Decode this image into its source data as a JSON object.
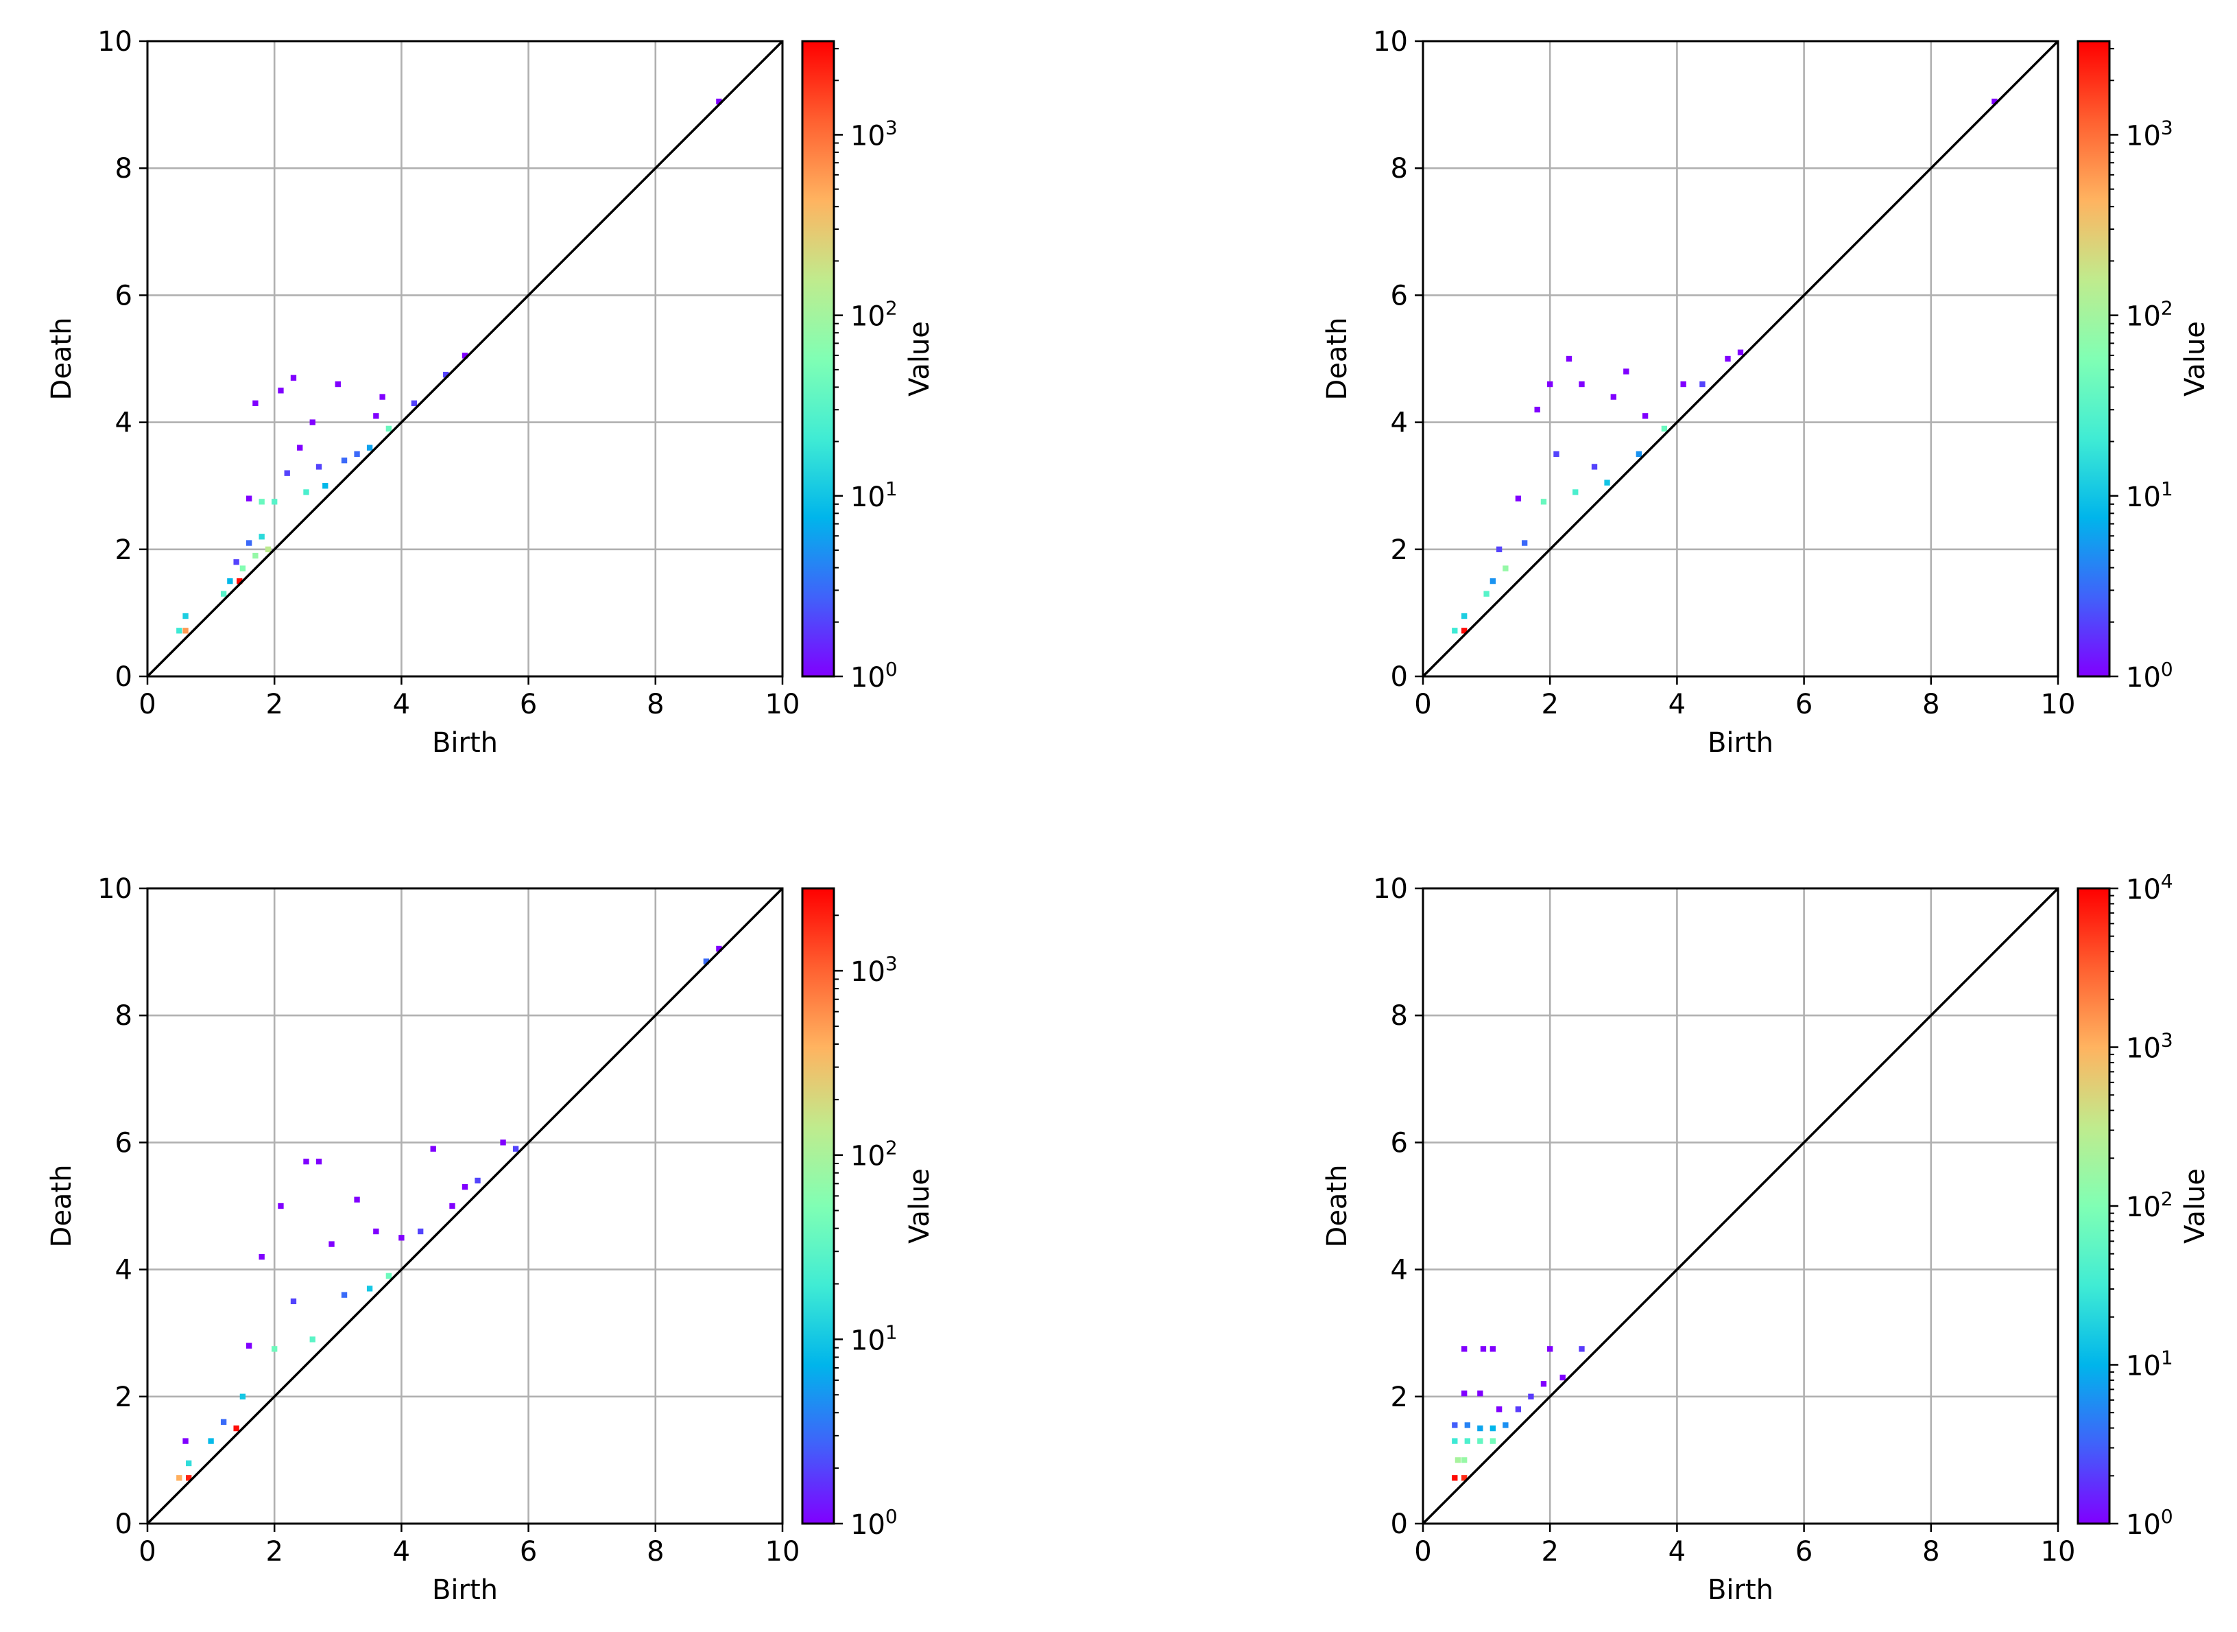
{
  "chart_data": [
    {
      "type": "heatmap",
      "xlabel": "Birth",
      "ylabel": "Death",
      "xlim": [
        0,
        10
      ],
      "ylim": [
        0,
        10
      ],
      "xticks": [
        "0",
        "2",
        "4",
        "6",
        "8",
        "10"
      ],
      "yticks": [
        "0",
        "2",
        "4",
        "6",
        "8",
        "10"
      ],
      "grid": true,
      "diagonal": true,
      "colorbar": {
        "label": "Value",
        "scale": "log",
        "range": [
          1,
          3300
        ],
        "colormap": "rainbow",
        "ticks": [
          {
            "base": "10",
            "exp": "0",
            "value": 1
          },
          {
            "base": "10",
            "exp": "1",
            "value": 10
          },
          {
            "base": "10",
            "exp": "2",
            "value": 100
          },
          {
            "base": "10",
            "exp": "3",
            "value": 1000
          }
        ]
      },
      "cells": [
        {
          "birth": 0.5,
          "death": 0.72,
          "value": 20
        },
        {
          "birth": 0.6,
          "death": 0.72,
          "value": 600
        },
        {
          "birth": 0.6,
          "death": 0.95,
          "value": 12
        },
        {
          "birth": 1.2,
          "death": 1.3,
          "value": 30
        },
        {
          "birth": 1.3,
          "death": 1.5,
          "value": 8
        },
        {
          "birth": 1.45,
          "death": 1.5,
          "value": 3000
        },
        {
          "birth": 1.4,
          "death": 1.8,
          "value": 2
        },
        {
          "birth": 1.5,
          "death": 1.7,
          "value": 60
        },
        {
          "birth": 1.6,
          "death": 2.1,
          "value": 3
        },
        {
          "birth": 1.7,
          "death": 1.9,
          "value": 80
        },
        {
          "birth": 1.8,
          "death": 2.2,
          "value": 15
        },
        {
          "birth": 1.9,
          "death": 2.0,
          "value": 150
        },
        {
          "birth": 1.6,
          "death": 2.8,
          "value": 1
        },
        {
          "birth": 1.7,
          "death": 4.3,
          "value": 1
        },
        {
          "birth": 1.8,
          "death": 2.75,
          "value": 40
        },
        {
          "birth": 2.0,
          "death": 2.75,
          "value": 30
        },
        {
          "birth": 2.1,
          "death": 4.5,
          "value": 1
        },
        {
          "birth": 2.2,
          "death": 3.2,
          "value": 2
        },
        {
          "birth": 2.3,
          "death": 4.7,
          "value": 1
        },
        {
          "birth": 2.4,
          "death": 3.6,
          "value": 1
        },
        {
          "birth": 2.5,
          "death": 2.9,
          "value": 25
        },
        {
          "birth": 2.6,
          "death": 4.0,
          "value": 1
        },
        {
          "birth": 2.7,
          "death": 3.3,
          "value": 2
        },
        {
          "birth": 2.8,
          "death": 3.0,
          "value": 8
        },
        {
          "birth": 3.0,
          "death": 4.6,
          "value": 1
        },
        {
          "birth": 3.1,
          "death": 3.4,
          "value": 3
        },
        {
          "birth": 3.3,
          "death": 3.5,
          "value": 3
        },
        {
          "birth": 3.5,
          "death": 3.6,
          "value": 6
        },
        {
          "birth": 3.6,
          "death": 4.1,
          "value": 1
        },
        {
          "birth": 3.7,
          "death": 4.4,
          "value": 1
        },
        {
          "birth": 3.8,
          "death": 3.9,
          "value": 40
        },
        {
          "birth": 4.2,
          "death": 4.3,
          "value": 2
        },
        {
          "birth": 4.7,
          "death": 4.75,
          "value": 2
        },
        {
          "birth": 5.0,
          "death": 5.05,
          "value": 1
        },
        {
          "birth": 9.0,
          "death": 9.05,
          "value": 1
        }
      ]
    },
    {
      "type": "heatmap",
      "xlabel": "Birth",
      "ylabel": "Death",
      "xlim": [
        0,
        10
      ],
      "ylim": [
        0,
        10
      ],
      "xticks": [
        "0",
        "2",
        "4",
        "6",
        "8",
        "10"
      ],
      "yticks": [
        "0",
        "2",
        "4",
        "6",
        "8",
        "10"
      ],
      "grid": true,
      "diagonal": true,
      "colorbar": {
        "label": "Value",
        "scale": "log",
        "range": [
          1,
          3300
        ],
        "colormap": "rainbow",
        "ticks": [
          {
            "base": "10",
            "exp": "0",
            "value": 1
          },
          {
            "base": "10",
            "exp": "1",
            "value": 10
          },
          {
            "base": "10",
            "exp": "2",
            "value": 100
          },
          {
            "base": "10",
            "exp": "3",
            "value": 1000
          }
        ]
      },
      "cells": [
        {
          "birth": 0.5,
          "death": 0.72,
          "value": 20
        },
        {
          "birth": 0.65,
          "death": 0.72,
          "value": 3000
        },
        {
          "birth": 0.65,
          "death": 0.95,
          "value": 12
        },
        {
          "birth": 1.0,
          "death": 1.3,
          "value": 30
        },
        {
          "birth": 1.1,
          "death": 1.5,
          "value": 5
        },
        {
          "birth": 1.2,
          "death": 2.0,
          "value": 2
        },
        {
          "birth": 1.3,
          "death": 1.7,
          "value": 80
        },
        {
          "birth": 1.5,
          "death": 2.8,
          "value": 1
        },
        {
          "birth": 1.6,
          "death": 2.1,
          "value": 3
        },
        {
          "birth": 1.8,
          "death": 4.2,
          "value": 1
        },
        {
          "birth": 1.9,
          "death": 2.75,
          "value": 40
        },
        {
          "birth": 2.0,
          "death": 4.6,
          "value": 1
        },
        {
          "birth": 2.1,
          "death": 3.5,
          "value": 2
        },
        {
          "birth": 2.3,
          "death": 5.0,
          "value": 1
        },
        {
          "birth": 2.4,
          "death": 2.9,
          "value": 25
        },
        {
          "birth": 2.5,
          "death": 4.6,
          "value": 1
        },
        {
          "birth": 2.7,
          "death": 3.3,
          "value": 2
        },
        {
          "birth": 2.9,
          "death": 3.05,
          "value": 10
        },
        {
          "birth": 3.0,
          "death": 4.4,
          "value": 1
        },
        {
          "birth": 3.2,
          "death": 4.8,
          "value": 1
        },
        {
          "birth": 3.4,
          "death": 3.5,
          "value": 5
        },
        {
          "birth": 3.5,
          "death": 4.1,
          "value": 1
        },
        {
          "birth": 3.8,
          "death": 3.9,
          "value": 40
        },
        {
          "birth": 4.1,
          "death": 4.6,
          "value": 1
        },
        {
          "birth": 4.4,
          "death": 4.6,
          "value": 2
        },
        {
          "birth": 4.8,
          "death": 5.0,
          "value": 1
        },
        {
          "birth": 5.0,
          "death": 5.1,
          "value": 1
        },
        {
          "birth": 9.0,
          "death": 9.05,
          "value": 1
        }
      ]
    },
    {
      "type": "heatmap",
      "xlabel": "Birth",
      "ylabel": "Death",
      "xlim": [
        0,
        10
      ],
      "ylim": [
        0,
        10
      ],
      "xticks": [
        "0",
        "2",
        "4",
        "6",
        "8",
        "10"
      ],
      "yticks": [
        "0",
        "2",
        "4",
        "6",
        "8",
        "10"
      ],
      "grid": true,
      "diagonal": true,
      "colorbar": {
        "label": "Value",
        "scale": "log",
        "range": [
          1,
          2800
        ],
        "colormap": "rainbow",
        "ticks": [
          {
            "base": "10",
            "exp": "0",
            "value": 1
          },
          {
            "base": "10",
            "exp": "1",
            "value": 10
          },
          {
            "base": "10",
            "exp": "2",
            "value": 100
          },
          {
            "base": "10",
            "exp": "3",
            "value": 1000
          }
        ]
      },
      "cells": [
        {
          "birth": 0.5,
          "death": 0.72,
          "value": 400
        },
        {
          "birth": 0.65,
          "death": 0.72,
          "value": 2000
        },
        {
          "birth": 0.65,
          "death": 0.95,
          "value": 15
        },
        {
          "birth": 0.6,
          "death": 1.3,
          "value": 1
        },
        {
          "birth": 1.0,
          "death": 1.3,
          "value": 8
        },
        {
          "birth": 1.2,
          "death": 1.6,
          "value": 3
        },
        {
          "birth": 1.4,
          "death": 1.5,
          "value": 2500
        },
        {
          "birth": 1.5,
          "death": 2.0,
          "value": 10
        },
        {
          "birth": 1.6,
          "death": 2.8,
          "value": 1
        },
        {
          "birth": 1.8,
          "death": 4.2,
          "value": 1
        },
        {
          "birth": 2.0,
          "death": 2.75,
          "value": 40
        },
        {
          "birth": 2.1,
          "death": 5.0,
          "value": 1
        },
        {
          "birth": 2.3,
          "death": 3.5,
          "value": 2
        },
        {
          "birth": 2.5,
          "death": 5.7,
          "value": 1
        },
        {
          "birth": 2.7,
          "death": 5.7,
          "value": 1
        },
        {
          "birth": 2.6,
          "death": 2.9,
          "value": 30
        },
        {
          "birth": 2.9,
          "death": 4.4,
          "value": 1
        },
        {
          "birth": 3.1,
          "death": 3.6,
          "value": 3
        },
        {
          "birth": 3.3,
          "death": 5.1,
          "value": 1
        },
        {
          "birth": 3.5,
          "death": 3.7,
          "value": 10
        },
        {
          "birth": 3.6,
          "death": 4.6,
          "value": 1
        },
        {
          "birth": 3.8,
          "death": 3.9,
          "value": 40
        },
        {
          "birth": 4.0,
          "death": 4.5,
          "value": 1
        },
        {
          "birth": 4.3,
          "death": 4.6,
          "value": 2
        },
        {
          "birth": 4.5,
          "death": 5.9,
          "value": 1
        },
        {
          "birth": 4.8,
          "death": 5.0,
          "value": 1
        },
        {
          "birth": 5.0,
          "death": 5.3,
          "value": 1
        },
        {
          "birth": 5.2,
          "death": 5.4,
          "value": 2
        },
        {
          "birth": 5.6,
          "death": 6.0,
          "value": 1
        },
        {
          "birth": 5.8,
          "death": 5.9,
          "value": 2
        },
        {
          "birth": 8.8,
          "death": 8.85,
          "value": 3
        },
        {
          "birth": 9.0,
          "death": 9.05,
          "value": 1
        }
      ]
    },
    {
      "type": "heatmap",
      "xlabel": "Birth",
      "ylabel": "Death",
      "xlim": [
        0,
        10
      ],
      "ylim": [
        0,
        10
      ],
      "xticks": [
        "0",
        "2",
        "4",
        "6",
        "8",
        "10"
      ],
      "yticks": [
        "0",
        "2",
        "4",
        "6",
        "8",
        "10"
      ],
      "grid": true,
      "diagonal": true,
      "colorbar": {
        "label": "Value",
        "scale": "log",
        "range": [
          1,
          10000
        ],
        "colormap": "rainbow",
        "ticks": [
          {
            "base": "10",
            "exp": "0",
            "value": 1
          },
          {
            "base": "10",
            "exp": "1",
            "value": 10
          },
          {
            "base": "10",
            "exp": "2",
            "value": 100
          },
          {
            "base": "10",
            "exp": "3",
            "value": 1000
          },
          {
            "base": "10",
            "exp": "4",
            "value": 10000
          }
        ]
      },
      "cells": [
        {
          "birth": 0.5,
          "death": 0.72,
          "value": 9000
        },
        {
          "birth": 0.65,
          "death": 0.72,
          "value": 6000
        },
        {
          "birth": 0.55,
          "death": 1.0,
          "value": 200
        },
        {
          "birth": 0.65,
          "death": 1.0,
          "value": 150
        },
        {
          "birth": 0.5,
          "death": 1.3,
          "value": 30
        },
        {
          "birth": 0.7,
          "death": 1.3,
          "value": 40
        },
        {
          "birth": 0.9,
          "death": 1.3,
          "value": 60
        },
        {
          "birth": 1.1,
          "death": 1.3,
          "value": 80
        },
        {
          "birth": 0.5,
          "death": 1.55,
          "value": 3
        },
        {
          "birth": 0.7,
          "death": 1.55,
          "value": 5
        },
        {
          "birth": 0.9,
          "death": 1.5,
          "value": 8
        },
        {
          "birth": 1.1,
          "death": 1.5,
          "value": 10
        },
        {
          "birth": 1.3,
          "death": 1.55,
          "value": 6
        },
        {
          "birth": 0.65,
          "death": 2.05,
          "value": 1
        },
        {
          "birth": 0.9,
          "death": 2.05,
          "value": 1
        },
        {
          "birth": 1.2,
          "death": 1.8,
          "value": 1
        },
        {
          "birth": 1.5,
          "death": 1.8,
          "value": 2
        },
        {
          "birth": 1.7,
          "death": 2.0,
          "value": 2
        },
        {
          "birth": 0.65,
          "death": 2.75,
          "value": 1
        },
        {
          "birth": 0.95,
          "death": 2.75,
          "value": 1
        },
        {
          "birth": 1.1,
          "death": 2.75,
          "value": 1
        },
        {
          "birth": 2.0,
          "death": 2.75,
          "value": 1
        },
        {
          "birth": 2.5,
          "death": 2.75,
          "value": 2
        },
        {
          "birth": 2.2,
          "death": 2.3,
          "value": 1
        },
        {
          "birth": 1.9,
          "death": 2.2,
          "value": 1
        }
      ]
    }
  ]
}
